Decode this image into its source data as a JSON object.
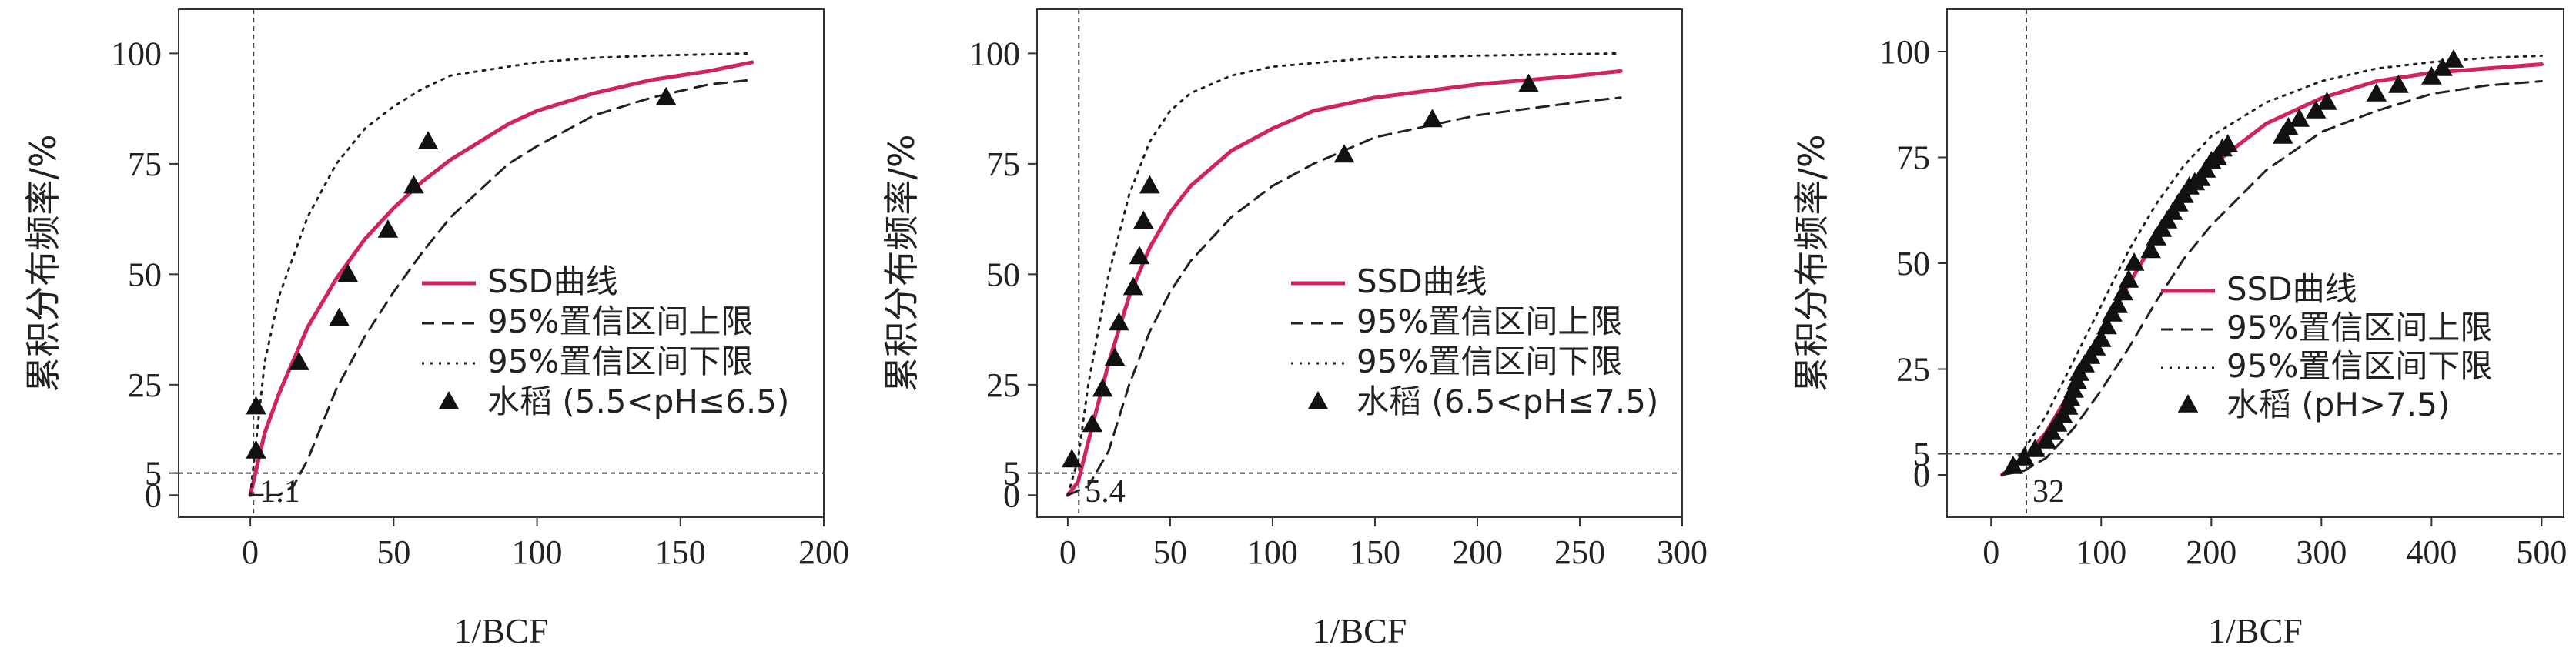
{
  "chart_data": [
    {
      "type": "line",
      "xlabel": "1/BCF",
      "ylabel": "累积分布频率/%",
      "xlim": [
        -25,
        200
      ],
      "ylim": [
        -5,
        110
      ],
      "xticks": [
        "0",
        "50",
        "100",
        "150",
        "200"
      ],
      "yticks": [
        "0",
        "5",
        "25",
        "50",
        "75",
        "100"
      ],
      "ytick_values": [
        0,
        5,
        25,
        50,
        75,
        100
      ],
      "xtick_values": [
        0,
        50,
        100,
        150,
        200
      ],
      "hc5_label": "1.1",
      "hc5_value": 1.1,
      "legend_position": "right-middle",
      "legend": [
        "SSD曲线",
        "95%置信区间上限",
        "95%置信区间下限",
        "水稻 (5.5<pH≤6.5)"
      ],
      "colors": {
        "ssd": "#d1255a",
        "ci": "#222222",
        "points": "#111111"
      },
      "series": [
        {
          "name": "SSD曲线",
          "style": "solid",
          "x": [
            0,
            5,
            10,
            20,
            30,
            40,
            50,
            60,
            70,
            80,
            90,
            100,
            120,
            140,
            160,
            175
          ],
          "y": [
            0,
            14,
            23,
            38,
            49,
            58,
            65,
            71,
            76,
            80,
            84,
            87,
            91,
            94,
            96,
            98
          ]
        },
        {
          "name": "95%置信区间上限",
          "style": "dashed",
          "x": [
            0,
            10,
            15,
            20,
            25,
            30,
            40,
            50,
            60,
            70,
            80,
            90,
            100,
            120,
            140,
            160,
            175
          ],
          "y": [
            0,
            0,
            2,
            8,
            16,
            24,
            36,
            46,
            55,
            63,
            69,
            75,
            79,
            86,
            90,
            93,
            94
          ]
        },
        {
          "name": "95%置信区间下限",
          "style": "dotted",
          "x": [
            0,
            5,
            10,
            20,
            30,
            40,
            50,
            60,
            70,
            80,
            100,
            120,
            140,
            175
          ],
          "y": [
            0,
            30,
            45,
            63,
            75,
            83,
            88,
            92,
            95,
            96,
            98,
            99,
            99.5,
            100
          ]
        }
      ],
      "points": {
        "name": "水稻 (5.5<pH≤6.5)",
        "x": [
          2,
          2,
          17,
          31,
          34,
          48,
          57,
          62,
          145
        ],
        "y": [
          10,
          20,
          30,
          40,
          50,
          60,
          70,
          80,
          90
        ]
      }
    },
    {
      "type": "line",
      "xlabel": "1/BCF",
      "ylabel": "累积分布频率/%",
      "xlim": [
        -15,
        300
      ],
      "ylim": [
        -5,
        110
      ],
      "xticks": [
        "0",
        "50",
        "100",
        "150",
        "200",
        "250",
        "300"
      ],
      "yticks": [
        "0",
        "5",
        "25",
        "50",
        "75",
        "100"
      ],
      "ytick_values": [
        0,
        5,
        25,
        50,
        75,
        100
      ],
      "xtick_values": [
        0,
        50,
        100,
        150,
        200,
        250,
        300
      ],
      "hc5_label": "5.4",
      "hc5_value": 5.4,
      "legend_position": "right-middle",
      "legend": [
        "SSD曲线",
        "95%置信区间上限",
        "95%置信区间下限",
        "水稻 (6.5<pH≤7.5)"
      ],
      "colors": {
        "ssd": "#d1255a",
        "ci": "#222222",
        "points": "#111111"
      },
      "series": [
        {
          "name": "SSD曲线",
          "style": "solid",
          "x": [
            0,
            5,
            10,
            20,
            30,
            40,
            50,
            60,
            80,
            100,
            120,
            150,
            200,
            250,
            270
          ],
          "y": [
            0,
            3,
            12,
            30,
            45,
            56,
            64,
            70,
            78,
            83,
            87,
            90,
            93,
            95,
            96
          ]
        },
        {
          "name": "95%置信区间上限",
          "style": "dashed",
          "x": [
            0,
            10,
            20,
            30,
            40,
            50,
            60,
            80,
            100,
            120,
            150,
            200,
            250,
            270
          ],
          "y": [
            0,
            2,
            10,
            25,
            37,
            46,
            53,
            63,
            70,
            75,
            81,
            86,
            89,
            90
          ]
        },
        {
          "name": "95%置信区间下限",
          "style": "dotted",
          "x": [
            0,
            5,
            10,
            20,
            30,
            40,
            50,
            60,
            80,
            100,
            150,
            200,
            270
          ],
          "y": [
            0,
            8,
            25,
            50,
            68,
            80,
            87,
            91,
            95,
            97,
            99,
            99.5,
            100
          ]
        }
      ],
      "points": {
        "name": "水稻 (6.5<pH≤7.5)",
        "x": [
          2,
          12,
          17,
          23,
          25,
          32,
          35,
          37,
          40,
          135,
          178,
          225
        ],
        "y": [
          8,
          16,
          24,
          31,
          39,
          47,
          54,
          62,
          70,
          77,
          85,
          93
        ]
      }
    },
    {
      "type": "line",
      "xlabel": "1/BCF",
      "ylabel": "累积分布频率/%",
      "xlim": [
        -40,
        520
      ],
      "ylim": [
        -10,
        110
      ],
      "xticks": [
        "0",
        "100",
        "200",
        "300",
        "400",
        "500"
      ],
      "yticks": [
        "0",
        "5",
        "25",
        "50",
        "75",
        "100"
      ],
      "ytick_values": [
        0,
        5,
        25,
        50,
        75,
        100
      ],
      "xtick_values": [
        0,
        100,
        200,
        300,
        400,
        500
      ],
      "hc5_label": "32",
      "hc5_value": 32,
      "legend_position": "right-middle",
      "legend": [
        "SSD曲线",
        "95%置信区间上限",
        "95%置信区间下限",
        "水稻 (pH>7.5)"
      ],
      "colors": {
        "ssd": "#d1255a",
        "ci": "#222222",
        "points": "#111111"
      },
      "series": [
        {
          "name": "SSD曲线",
          "style": "solid",
          "x": [
            10,
            30,
            50,
            75,
            100,
            125,
            150,
            175,
            200,
            250,
            300,
            350,
            400,
            450,
            500
          ],
          "y": [
            0,
            4,
            10,
            21,
            33,
            45,
            56,
            65,
            73,
            83,
            89,
            93,
            95,
            96,
            97
          ]
        },
        {
          "name": "95%置信区间上限",
          "style": "dashed",
          "x": [
            10,
            30,
            50,
            75,
            100,
            125,
            150,
            175,
            200,
            250,
            300,
            350,
            400,
            450,
            500
          ],
          "y": [
            0,
            1,
            4,
            11,
            20,
            30,
            41,
            51,
            59,
            72,
            81,
            86,
            90,
            92,
            93
          ]
        },
        {
          "name": "95%置信区间下限",
          "style": "dotted",
          "x": [
            10,
            30,
            50,
            75,
            100,
            125,
            150,
            175,
            200,
            250,
            300,
            350,
            400,
            450,
            500
          ],
          "y": [
            0,
            6,
            14,
            27,
            40,
            53,
            64,
            73,
            80,
            88,
            93,
            96,
            97.5,
            98.5,
            99
          ]
        },
        {
          "name": "水稻 (pH>7.5)",
          "style": "markers",
          "x": [],
          "y": []
        }
      ],
      "points": {
        "name": "水稻 (pH>7.5)",
        "x": [
          20,
          30,
          40,
          50,
          55,
          60,
          65,
          70,
          72,
          75,
          78,
          80,
          85,
          90,
          95,
          100,
          105,
          110,
          115,
          120,
          125,
          130,
          145,
          150,
          155,
          160,
          165,
          170,
          175,
          180,
          185,
          190,
          195,
          200,
          205,
          210,
          215,
          265,
          270,
          280,
          295,
          305,
          350,
          370,
          400,
          410,
          420
        ],
        "y": [
          2,
          4,
          6,
          8,
          10,
          12,
          14,
          16,
          18,
          20,
          22,
          24,
          26,
          28,
          30,
          32,
          35,
          38,
          40,
          43,
          46,
          50,
          53,
          56,
          58,
          60,
          62,
          64,
          66,
          68,
          69,
          70,
          72,
          74,
          75,
          77,
          78,
          80,
          82,
          84,
          86,
          88,
          90,
          92,
          94,
          96,
          98
        ]
      }
    }
  ]
}
